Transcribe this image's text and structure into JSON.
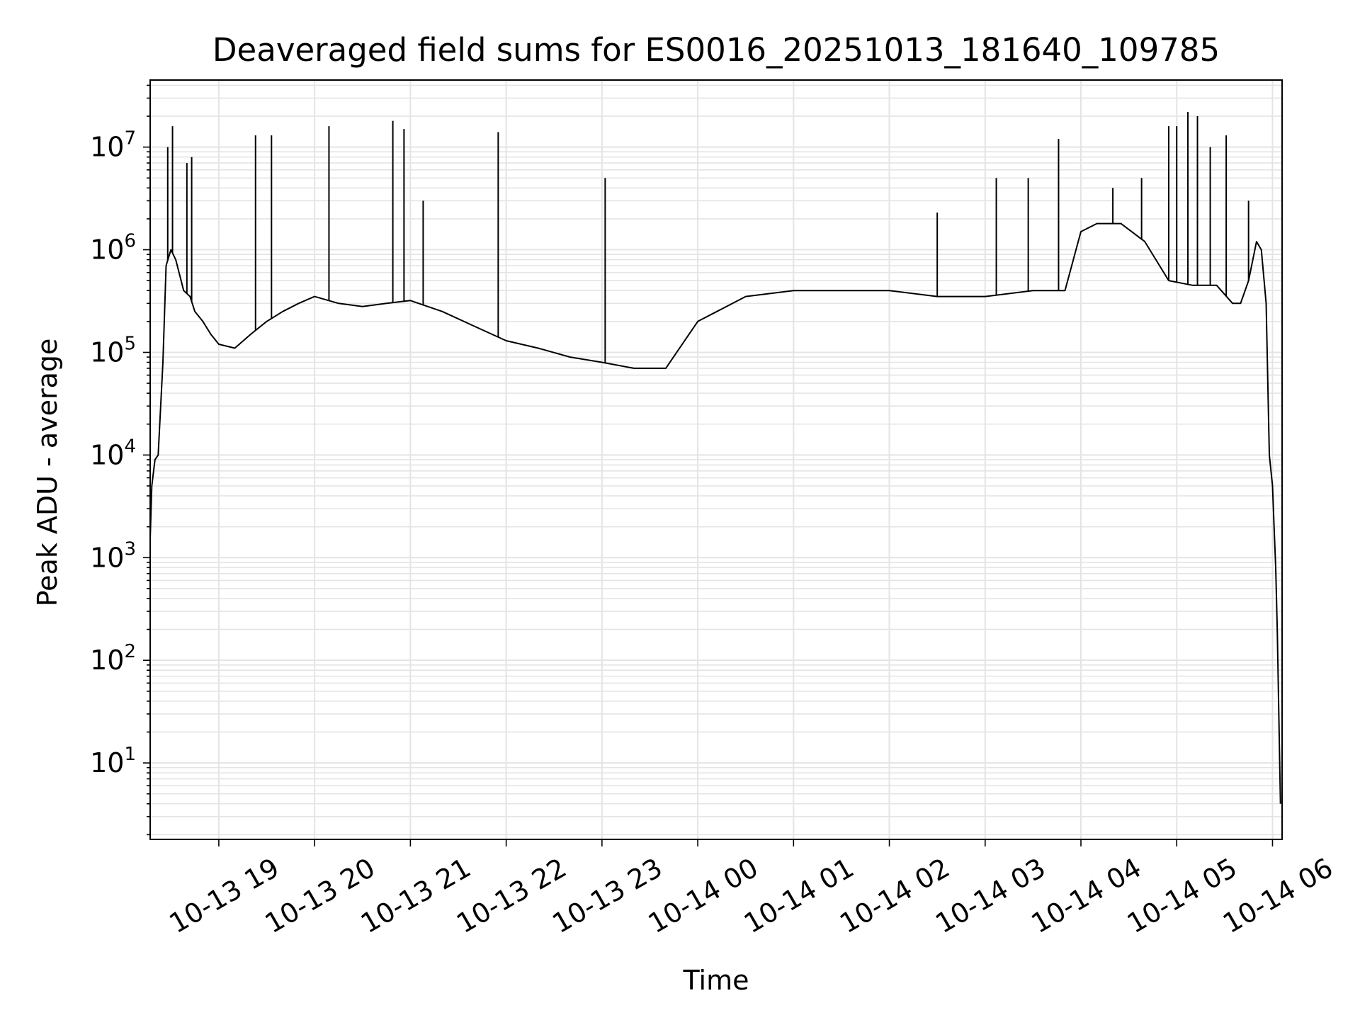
{
  "chart_data": {
    "type": "line",
    "title": "Deaveraged field sums for ES0016_20251013_181640_109785",
    "xlabel": "Time",
    "ylabel": "Peak ADU - average",
    "yscale": "log",
    "xlim": [
      "2025-10-13T18:17",
      "2025-10-14T06:06"
    ],
    "ylim": [
      1.8,
      45000000
    ],
    "grid": "both",
    "line_color": "#000000",
    "grid_color": "#e4e4e4",
    "x_tick_labels": [
      "10-13 19",
      "10-13 20",
      "10-13 21",
      "10-13 22",
      "10-13 23",
      "10-14 00",
      "10-14 01",
      "10-14 02",
      "10-14 03",
      "10-14 04",
      "10-14 05",
      "10-14 06"
    ],
    "y_tick_labels": [
      {
        "base": "10",
        "exp": "1"
      },
      {
        "base": "10",
        "exp": "2"
      },
      {
        "base": "10",
        "exp": "3"
      },
      {
        "base": "10",
        "exp": "4"
      },
      {
        "base": "10",
        "exp": "5"
      },
      {
        "base": "10",
        "exp": "6"
      },
      {
        "base": "10",
        "exp": "7"
      }
    ],
    "series": [
      {
        "x": [
          "2025-10-13T18:17",
          "2025-10-13T18:18",
          "2025-10-13T18:20",
          "2025-10-13T18:22",
          "2025-10-13T18:25",
          "2025-10-13T18:27",
          "2025-10-13T18:30",
          "2025-10-13T18:33",
          "2025-10-13T18:38",
          "2025-10-13T18:42",
          "2025-10-13T18:45",
          "2025-10-13T18:50",
          "2025-10-13T18:55",
          "2025-10-13T19:00",
          "2025-10-13T19:10",
          "2025-10-13T19:20",
          "2025-10-13T19:30",
          "2025-10-13T19:40",
          "2025-10-13T19:50",
          "2025-10-13T20:00",
          "2025-10-13T20:15",
          "2025-10-13T20:30",
          "2025-10-13T20:45",
          "2025-10-13T21:00",
          "2025-10-13T21:20",
          "2025-10-13T21:40",
          "2025-10-13T22:00",
          "2025-10-13T22:20",
          "2025-10-13T22:40",
          "2025-10-13T23:00",
          "2025-10-13T23:20",
          "2025-10-13T23:40",
          "2025-10-14T00:00",
          "2025-10-14T00:30",
          "2025-10-14T01:00",
          "2025-10-14T01:30",
          "2025-10-14T02:00",
          "2025-10-14T02:30",
          "2025-10-14T03:00",
          "2025-10-14T03:30",
          "2025-10-14T03:50",
          "2025-10-14T04:00",
          "2025-10-14T04:10",
          "2025-10-14T04:25",
          "2025-10-14T04:40",
          "2025-10-14T04:55",
          "2025-10-14T05:10",
          "2025-10-14T05:25",
          "2025-10-14T05:35",
          "2025-10-14T05:40",
          "2025-10-14T05:45",
          "2025-10-14T05:50",
          "2025-10-14T05:53",
          "2025-10-14T05:56",
          "2025-10-14T05:58",
          "2025-10-14T06:00",
          "2025-10-14T06:01",
          "2025-10-14T06:02",
          "2025-10-14T06:03",
          "2025-10-14T06:05"
        ],
        "y": [
          1500,
          5000,
          9000,
          10000,
          80000,
          700000,
          1000000,
          800000,
          400000,
          350000,
          250000,
          200000,
          150000,
          120000,
          110000,
          150000,
          200000,
          250000,
          300000,
          350000,
          300000,
          280000,
          300000,
          320000,
          250000,
          180000,
          130000,
          110000,
          90000,
          80000,
          70000,
          70000,
          200000,
          350000,
          400000,
          400000,
          400000,
          350000,
          350000,
          400000,
          400000,
          1500000,
          1800000,
          1800000,
          1200000,
          500000,
          450000,
          450000,
          300000,
          300000,
          500000,
          1200000,
          1000000,
          300000,
          10000,
          5000,
          2000,
          800,
          200,
          4
        ],
        "spikes": [
          [
            "2025-10-13T18:28",
            10000000
          ],
          [
            "2025-10-13T18:31",
            16000000
          ],
          [
            "2025-10-13T18:40",
            7000000
          ],
          [
            "2025-10-13T18:43",
            8000000
          ],
          [
            "2025-10-13T19:23",
            13000000
          ],
          [
            "2025-10-13T19:33",
            13000000
          ],
          [
            "2025-10-13T20:09",
            16000000
          ],
          [
            "2025-10-13T20:49",
            18000000
          ],
          [
            "2025-10-13T20:56",
            15000000
          ],
          [
            "2025-10-13T21:08",
            3000000
          ],
          [
            "2025-10-13T21:55",
            14000000
          ],
          [
            "2025-10-13T23:02",
            5000000
          ],
          [
            "2025-10-14T02:30",
            2300000
          ],
          [
            "2025-10-14T03:07",
            5000000
          ],
          [
            "2025-10-14T03:27",
            5000000
          ],
          [
            "2025-10-14T03:46",
            12000000
          ],
          [
            "2025-10-14T04:20",
            4000000
          ],
          [
            "2025-10-14T04:38",
            5000000
          ],
          [
            "2025-10-14T04:55",
            16000000
          ],
          [
            "2025-10-14T05:00",
            16000000
          ],
          [
            "2025-10-14T05:07",
            22000000
          ],
          [
            "2025-10-14T05:13",
            20000000
          ],
          [
            "2025-10-14T05:21",
            10000000
          ],
          [
            "2025-10-14T05:31",
            13000000
          ],
          [
            "2025-10-14T05:45",
            3000000
          ]
        ]
      }
    ]
  }
}
